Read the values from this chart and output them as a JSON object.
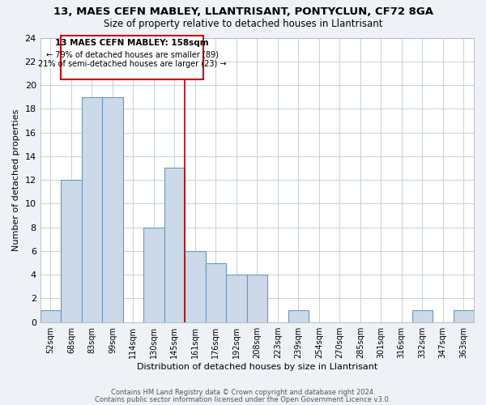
{
  "title": "13, MAES CEFN MABLEY, LLANTRISANT, PONTYCLUN, CF72 8GA",
  "subtitle": "Size of property relative to detached houses in Llantrisant",
  "xlabel": "Distribution of detached houses by size in Llantrisant",
  "ylabel": "Number of detached properties",
  "bin_labels": [
    "52sqm",
    "68sqm",
    "83sqm",
    "99sqm",
    "114sqm",
    "130sqm",
    "145sqm",
    "161sqm",
    "176sqm",
    "192sqm",
    "208sqm",
    "223sqm",
    "239sqm",
    "254sqm",
    "270sqm",
    "285sqm",
    "301sqm",
    "316sqm",
    "332sqm",
    "347sqm",
    "363sqm"
  ],
  "bar_values": [
    1,
    12,
    19,
    19,
    0,
    8,
    13,
    6,
    5,
    4,
    4,
    0,
    1,
    0,
    0,
    0,
    0,
    0,
    1,
    0,
    1
  ],
  "bar_color": "#ccd9e8",
  "bar_edge_color": "#6699bb",
  "highlight_index": 6,
  "highlight_line_color": "#aa0000",
  "ylim": [
    0,
    24
  ],
  "yticks": [
    0,
    2,
    4,
    6,
    8,
    10,
    12,
    14,
    16,
    18,
    20,
    22,
    24
  ],
  "annotation_title": "13 MAES CEFN MABLEY: 158sqm",
  "annotation_line1": "← 79% of detached houses are smaller (89)",
  "annotation_line2": "21% of semi-detached houses are larger (23) →",
  "footer1": "Contains HM Land Registry data © Crown copyright and database right 2024.",
  "footer2": "Contains public sector information licensed under the Open Government Licence v3.0.",
  "background_color": "#eef2f7",
  "plot_bg_color": "#ffffff",
  "grid_color": "#c8d0dc"
}
